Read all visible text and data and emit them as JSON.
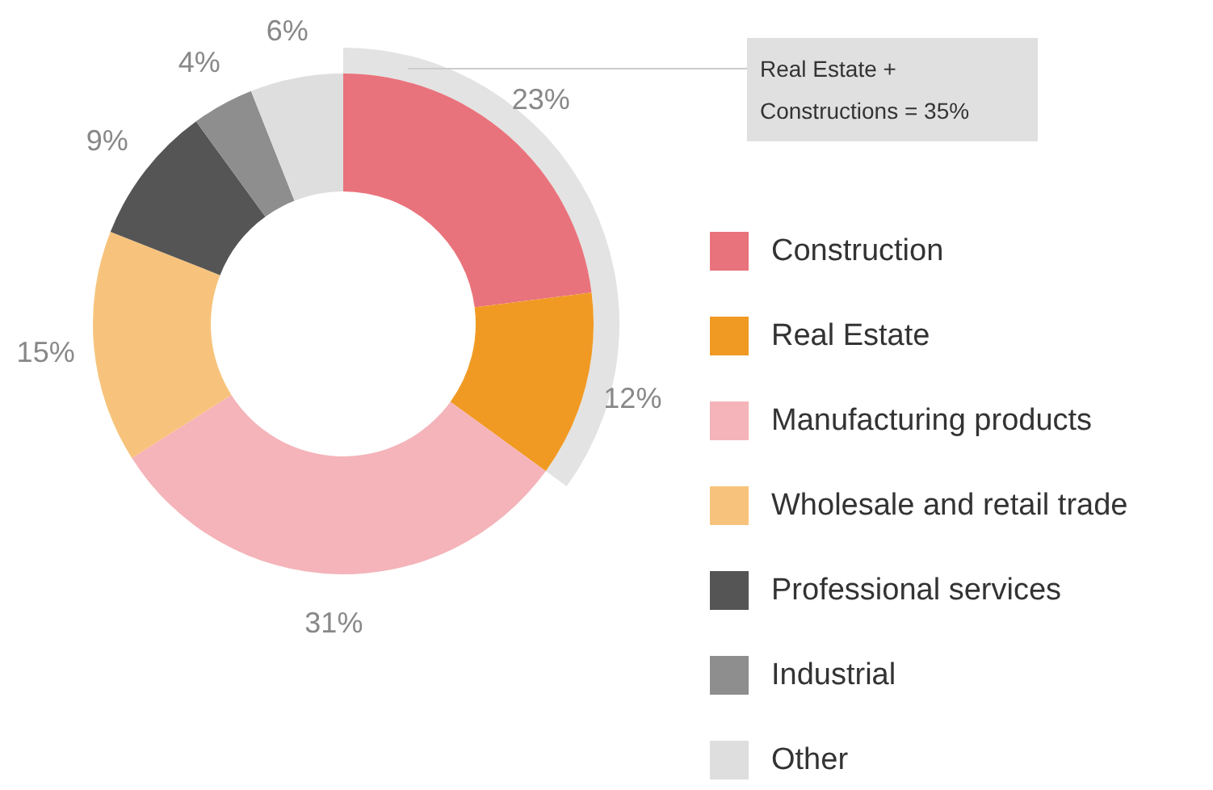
{
  "chart_data": {
    "type": "donut",
    "categories": [
      "Construction",
      "Real Estate",
      "Manufacturing products",
      "Wholesale and retail trade",
      "Professional services",
      "Industrial",
      "Other"
    ],
    "values": [
      23,
      12,
      31,
      15,
      9,
      4,
      6
    ],
    "value_labels": [
      "23%",
      "12%",
      "31%",
      "15%",
      "9%",
      "4%",
      "6%"
    ],
    "colors": [
      "#e9737c",
      "#f09a24",
      "#f4b4b9",
      "#f7c37c",
      "#555555",
      "#8e8e8e",
      "#dedede"
    ],
    "legend": "right",
    "annotations": [
      "Real Estate +\nConstructions = 35%"
    ]
  }
}
